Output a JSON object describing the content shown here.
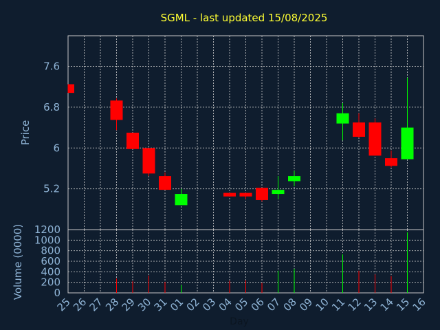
{
  "chart_data": {
    "type": "candlestick",
    "title": "SGML - last updated 15/08/2025",
    "xlabel": "Day",
    "price_ylabel": "Price",
    "volume_ylabel": "Volume (0000)",
    "x_tick_labels": [
      "25",
      "26",
      "27",
      "28",
      "29",
      "30",
      "31",
      "01",
      "02",
      "03",
      "04",
      "05",
      "06",
      "07",
      "08",
      "09",
      "10",
      "11",
      "12",
      "13",
      "14",
      "15",
      "16"
    ],
    "price_yticks": [
      "7.6",
      "6.8",
      "6",
      "5.2"
    ],
    "price_ylim": [
      4.4,
      8.2
    ],
    "volume_yticks": [
      "1200",
      "1000",
      "800",
      "600",
      "400",
      "200",
      "0"
    ],
    "volume_ylim": [
      0,
      1200
    ],
    "colors": {
      "up": "#00ff00",
      "down": "#ff0000",
      "title": "#ffff33",
      "axis_text": "#8fb4d6",
      "grid": "#c8c8c8",
      "background": "#0f1d2e"
    },
    "candles": [
      {
        "day": "25",
        "open": 7.25,
        "high": 7.25,
        "low": 7.08,
        "close": 7.08,
        "volume": 0
      },
      {
        "day": "28",
        "open": 6.93,
        "high": 6.97,
        "low": 6.35,
        "close": 6.55,
        "volume": 270
      },
      {
        "day": "29",
        "open": 6.3,
        "high": 6.3,
        "low": 5.98,
        "close": 5.98,
        "volume": 220
      },
      {
        "day": "30",
        "open": 6.0,
        "high": 6.0,
        "low": 5.45,
        "close": 5.5,
        "volume": 330
      },
      {
        "day": "31",
        "open": 5.45,
        "high": 5.52,
        "low": 5.18,
        "close": 5.18,
        "volume": 210
      },
      {
        "day": "01",
        "open": 4.88,
        "high": 5.2,
        "low": 4.88,
        "close": 5.1,
        "volume": 150
      },
      {
        "day": "04",
        "open": 5.12,
        "high": 5.12,
        "low": 5.05,
        "close": 5.05,
        "volume": 230
      },
      {
        "day": "05",
        "open": 5.12,
        "high": 5.12,
        "low": 5.0,
        "close": 5.05,
        "volume": 240
      },
      {
        "day": "06",
        "open": 5.22,
        "high": 5.22,
        "low": 4.95,
        "close": 4.98,
        "volume": 190
      },
      {
        "day": "07",
        "open": 5.1,
        "high": 5.45,
        "low": 5.0,
        "close": 5.18,
        "volume": 420
      },
      {
        "day": "08",
        "open": 5.35,
        "high": 5.55,
        "low": 5.25,
        "close": 5.45,
        "volume": 460
      },
      {
        "day": "11",
        "open": 6.48,
        "high": 6.88,
        "low": 6.15,
        "close": 6.68,
        "volume": 730
      },
      {
        "day": "12",
        "open": 6.5,
        "high": 6.68,
        "low": 6.2,
        "close": 6.22,
        "volume": 420
      },
      {
        "day": "13",
        "open": 6.5,
        "high": 6.58,
        "low": 5.85,
        "close": 5.85,
        "volume": 350
      },
      {
        "day": "14",
        "open": 5.8,
        "high": 5.95,
        "low": 5.62,
        "close": 5.65,
        "volume": 320
      },
      {
        "day": "15",
        "open": 5.78,
        "high": 7.38,
        "low": 5.78,
        "close": 6.4,
        "volume": 1150
      }
    ]
  }
}
